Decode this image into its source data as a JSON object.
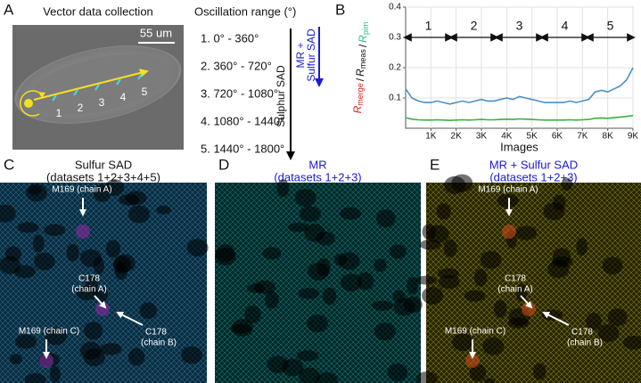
{
  "panel_a": {
    "label": "A",
    "title": "Vector data collection",
    "scale_bar": "55 um",
    "positions": [
      "1",
      "2",
      "3",
      "4",
      "5"
    ],
    "range_title": "Oscillation range (°)",
    "ranges": [
      "1. 0° - 360°",
      "2. 360° - 720°",
      "3. 720° - 1080°",
      "4. 1080° - 1440°",
      "5. 1440° - 1800°"
    ],
    "arrow_black": "Sulphur SAD",
    "arrow_blue": [
      "MR +",
      "Sulfur SAD"
    ]
  },
  "chart_data": {
    "type": "line",
    "label": "B",
    "ylabel_parts": [
      [
        "R",
        "merge"
      ],
      [
        "R",
        "meas"
      ],
      [
        "R",
        "pim"
      ]
    ],
    "ylabel_separator": "/",
    "ylabel_colors": [
      "#e0201c",
      "#111111",
      "#2ec27e"
    ],
    "xlabel": "Images",
    "xlim": [
      0,
      9000
    ],
    "ylim": [
      0,
      0.4
    ],
    "xticks": [
      {
        "value": 1000,
        "label": "1K"
      },
      {
        "value": 2000,
        "label": "2K"
      },
      {
        "value": 3000,
        "label": "3K"
      },
      {
        "value": 4000,
        "label": "4K"
      },
      {
        "value": 5000,
        "label": "5K"
      },
      {
        "value": 6000,
        "label": "6K"
      },
      {
        "value": 7000,
        "label": "7K"
      },
      {
        "value": 8000,
        "label": "8K"
      },
      {
        "value": 9000,
        "label": "9K"
      }
    ],
    "yticks": [
      0.1,
      0.2,
      0.3,
      0.4
    ],
    "grid": true,
    "segments": [
      {
        "label": "1",
        "start": 0,
        "end": 1800
      },
      {
        "label": "2",
        "start": 1800,
        "end": 3600
      },
      {
        "label": "3",
        "start": 3600,
        "end": 5400
      },
      {
        "label": "4",
        "start": 5400,
        "end": 7200
      },
      {
        "label": "5",
        "start": 7200,
        "end": 9000
      }
    ],
    "x": [
      0,
      250,
      500,
      750,
      1000,
      1250,
      1500,
      1750,
      2000,
      2250,
      2500,
      2750,
      3000,
      3250,
      3500,
      3750,
      4000,
      4250,
      4500,
      4750,
      5000,
      5250,
      5500,
      5750,
      6000,
      6250,
      6500,
      6750,
      7000,
      7250,
      7500,
      7750,
      8000,
      8250,
      8500,
      8750,
      9000
    ],
    "series": [
      {
        "color": "#4a90c8",
        "values": [
          0.13,
          0.1,
          0.09,
          0.085,
          0.085,
          0.09,
          0.085,
          0.08,
          0.085,
          0.09,
          0.085,
          0.09,
          0.095,
          0.09,
          0.09,
          0.095,
          0.1,
          0.095,
          0.105,
          0.1,
          0.095,
          0.09,
          0.085,
          0.085,
          0.085,
          0.085,
          0.09,
          0.085,
          0.09,
          0.095,
          0.12,
          0.125,
          0.12,
          0.13,
          0.14,
          0.16,
          0.2
        ]
      },
      {
        "color": "#3cb043",
        "values": [
          0.035,
          0.03,
          0.028,
          0.027,
          0.027,
          0.028,
          0.027,
          0.026,
          0.027,
          0.028,
          0.027,
          0.028,
          0.029,
          0.028,
          0.028,
          0.029,
          0.03,
          0.029,
          0.031,
          0.03,
          0.029,
          0.028,
          0.027,
          0.027,
          0.027,
          0.027,
          0.028,
          0.027,
          0.028,
          0.029,
          0.033,
          0.034,
          0.033,
          0.035,
          0.037,
          0.039,
          0.042
        ]
      }
    ]
  },
  "maps": [
    {
      "label": "C",
      "title": "Sulfur SAD",
      "subtitle": "(datasets 1+2+3+4+5)",
      "annotations": [
        [
          "M169 (chain A)"
        ],
        [
          "C178",
          "(chain A)"
        ],
        [
          "C178",
          "(chain B)"
        ],
        [
          "M169 (chain C)"
        ]
      ]
    },
    {
      "label": "D",
      "title": "MR",
      "subtitle": "(datasets 1+2+3)",
      "annotations": []
    },
    {
      "label": "E",
      "title": "MR + Sulfur SAD",
      "subtitle": "(datasets 1+2+3)",
      "annotations": [
        [
          "M169 (chain A)"
        ],
        [
          "C178",
          "(chain A)"
        ],
        [
          "C178",
          "(chain B)"
        ],
        [
          "M169 (chain C)"
        ]
      ]
    }
  ]
}
